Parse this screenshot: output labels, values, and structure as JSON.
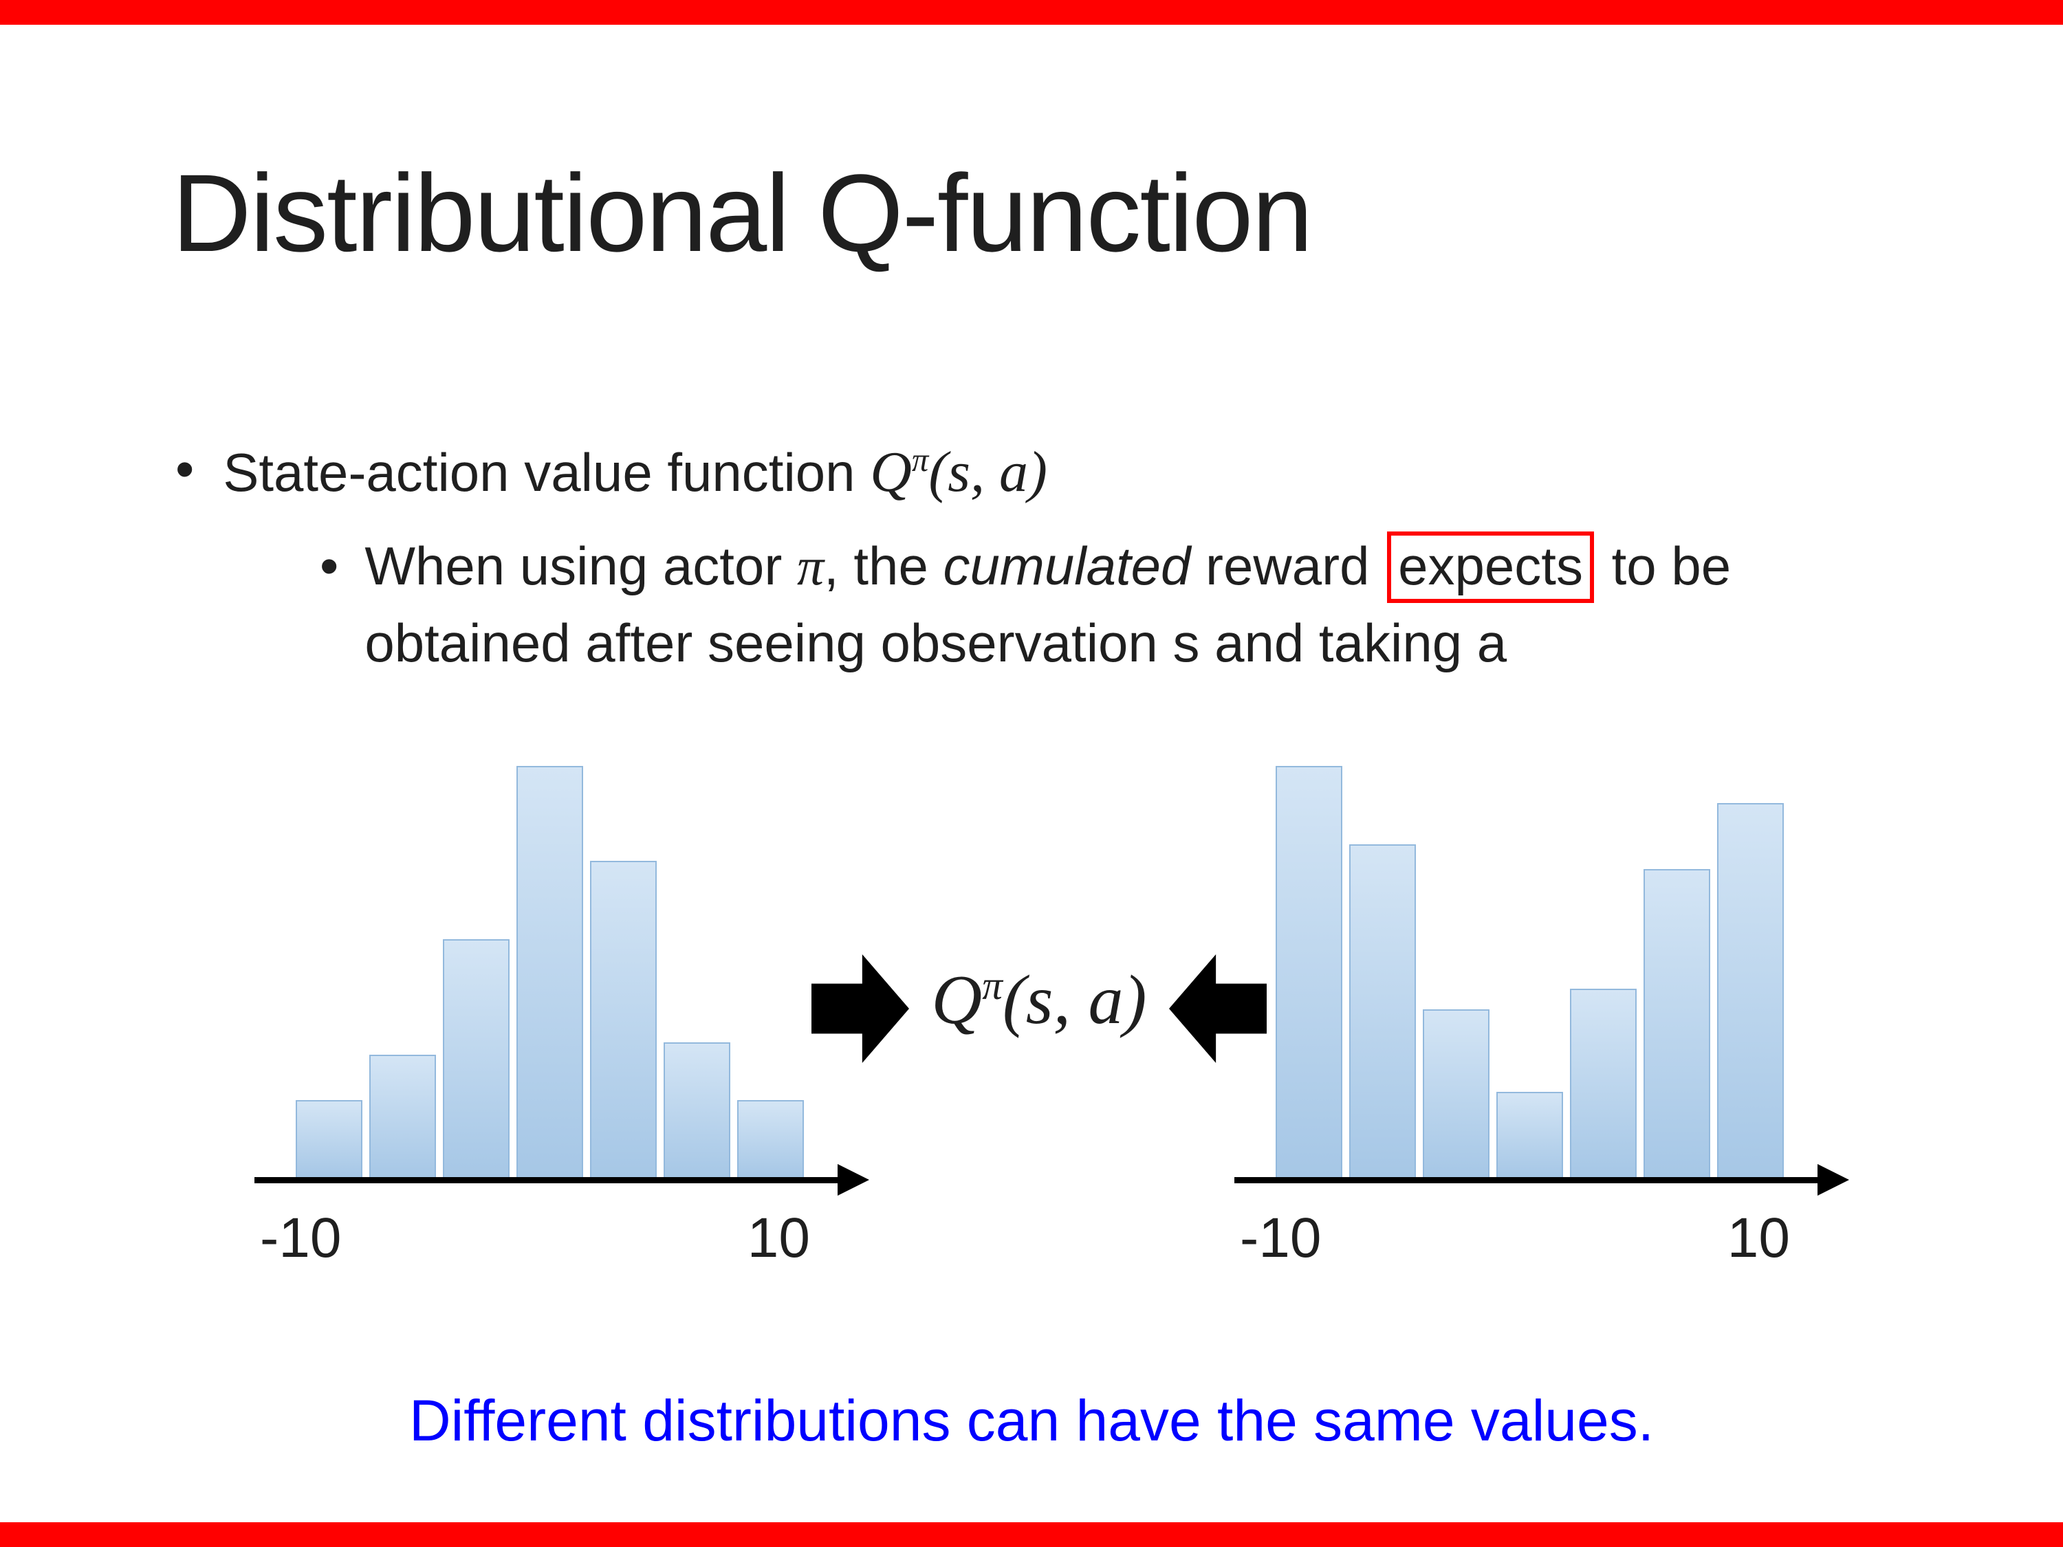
{
  "slide": {
    "title": "Distributional Q-function",
    "bullet_char": "•",
    "accent_colors": {
      "border_red": "#FF0000",
      "note_blue": "#0000FF",
      "bar_fill_top": "#D4E5F5",
      "bar_fill_bottom": "#A6C7E6",
      "bar_border": "#93B9DD",
      "arrow_black": "#000000"
    },
    "bullets": {
      "main": {
        "text": "State-action value function ",
        "math": {
          "base": "Q",
          "sup": "π",
          "args": "(s, a)"
        }
      },
      "sub": {
        "part1": "When using actor ",
        "pi": "π",
        "part2": ", the ",
        "cumulated": "cumulated",
        "part3": " reward ",
        "boxed": "expects",
        "part4": " to be obtained after seeing observation s and taking a"
      }
    },
    "center": {
      "math": {
        "base": "Q",
        "sup": "π",
        "args": "(s, a)"
      }
    },
    "note": "Different distributions can have the same values."
  },
  "chart_data": [
    {
      "type": "bar",
      "name": "left-histogram",
      "description": "unimodal reward distribution",
      "values": [
        0.19,
        0.3,
        0.58,
        1.0,
        0.77,
        0.33,
        0.19
      ],
      "x_axis": {
        "min_label": "-10",
        "max_label": "10"
      },
      "ylim": [
        0,
        1
      ],
      "grid": false,
      "legend": false
    },
    {
      "type": "bar",
      "name": "right-histogram",
      "description": "bimodal reward distribution",
      "values": [
        1.0,
        0.81,
        0.41,
        0.21,
        0.46,
        0.75,
        0.91
      ],
      "x_axis": {
        "min_label": "-10",
        "max_label": "10"
      },
      "ylim": [
        0,
        1
      ],
      "grid": false,
      "legend": false
    }
  ]
}
